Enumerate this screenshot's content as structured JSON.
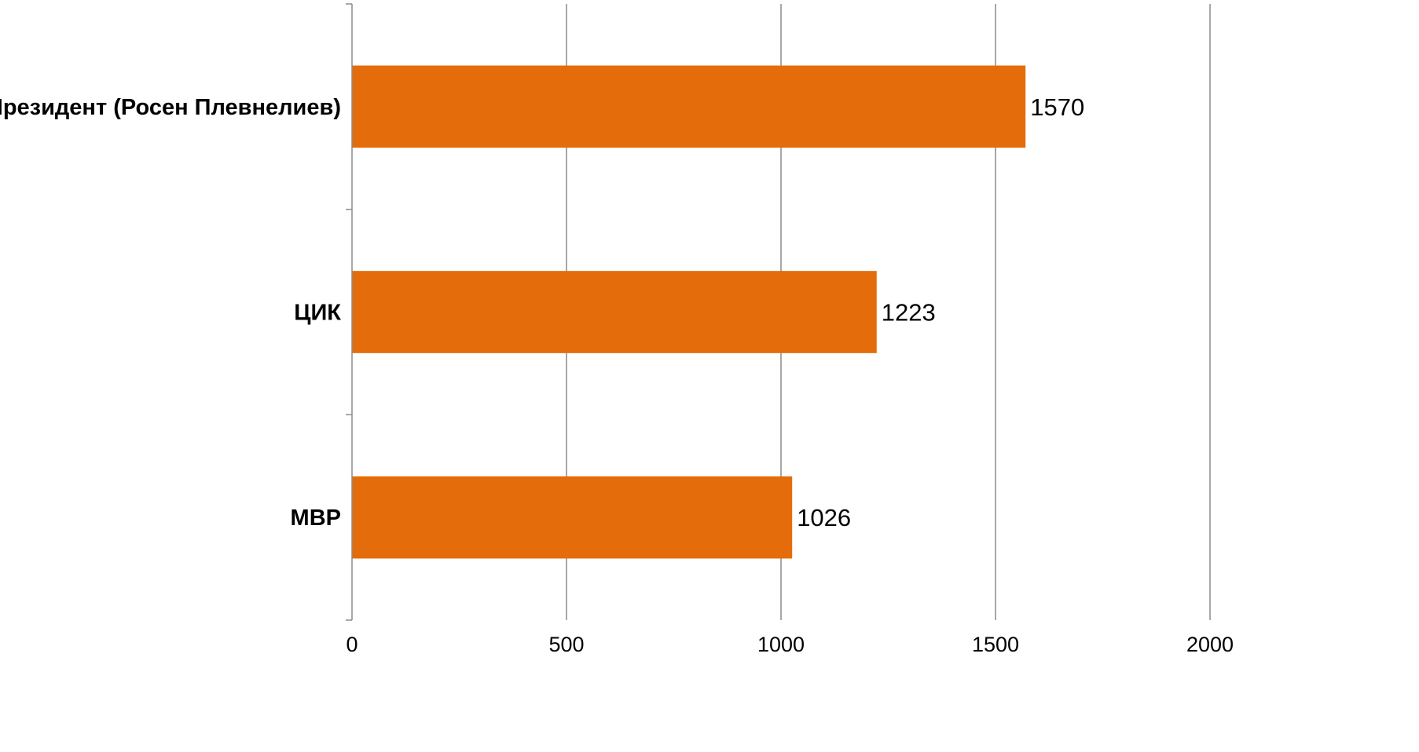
{
  "chart_data": {
    "type": "bar",
    "orientation": "horizontal",
    "categories": [
      "Президент (Росен Плевнелиев)",
      "ЦИК",
      "МВР"
    ],
    "values": [
      1570,
      1223,
      1026
    ],
    "data_labels": [
      "1570",
      "1223",
      "1026"
    ],
    "x_ticks": [
      0,
      500,
      1000,
      1500,
      2000
    ],
    "xlim": [
      0,
      2000
    ],
    "title": "",
    "xlabel": "",
    "ylabel": "",
    "grid": true,
    "legend": "none",
    "bar_color": "#e46c0a"
  }
}
